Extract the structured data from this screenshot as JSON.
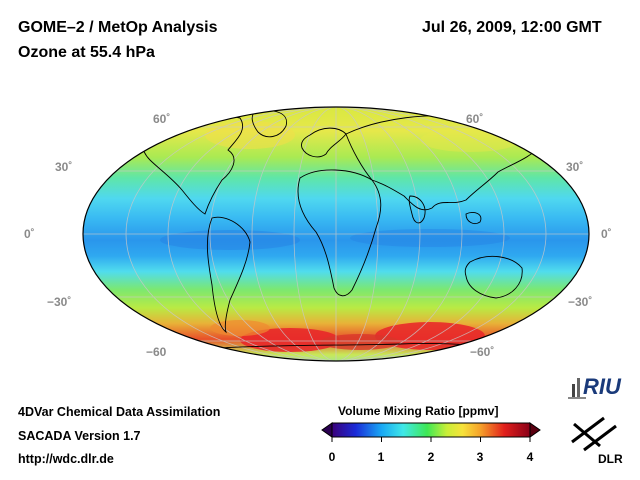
{
  "header": {
    "title_line1": "GOME–2 / MetOp Analysis",
    "title_line2": "Ozone at 55.4 hPa",
    "datetime": "Jul 26, 2009, 12:00 GMT"
  },
  "map": {
    "projection": "Mollweide",
    "latitude_labels_left": [
      "60˚",
      "30˚",
      "0˚",
      "−30˚",
      "−60"
    ],
    "latitude_labels_right": [
      "60˚",
      "30˚",
      "0˚",
      "−30˚",
      "−60˚"
    ],
    "colors": {
      "tropics": "#2a9cf0",
      "subtropics": "#4fe2ee",
      "midlat": "#7ce870",
      "polar_north": "#e6e84a",
      "southern_high": "#e8202a"
    }
  },
  "colorbar": {
    "label": "Volume Mixing Ratio [ppmv]",
    "ticks": [
      "0",
      "1",
      "2",
      "3",
      "4"
    ],
    "range": [
      0,
      4
    ],
    "colors": [
      "#3a007a",
      "#1a2bd8",
      "#19a8f4",
      "#3fe8e8",
      "#3ee855",
      "#c9ee38",
      "#f7e23a",
      "#f5a12a",
      "#e2201c",
      "#8a0018"
    ]
  },
  "footer": {
    "line1": "4DVar Chemical Data Assimilation",
    "line2": "SACADA Version 1.7",
    "line3": "http://wdc.dlr.de"
  },
  "logos": {
    "riu": "RIU",
    "dlr": "DLR"
  }
}
